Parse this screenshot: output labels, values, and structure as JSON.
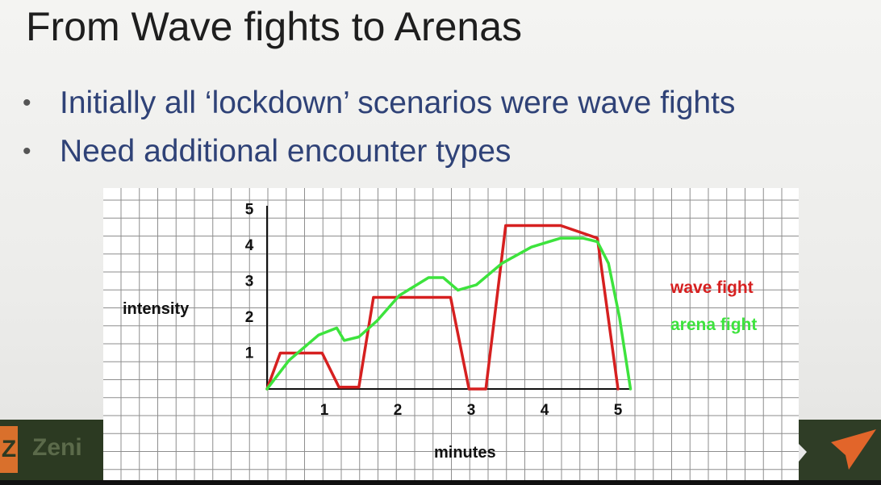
{
  "slide": {
    "title": "From Wave fights to Arenas",
    "bullets": [
      "Initially all ‘lockdown’ scenarios were wave fights",
      "Need additional encounter types"
    ],
    "bullet_symbol": "•",
    "logo_text": "Zeni",
    "logo_mark": "Z"
  },
  "chart_data": {
    "type": "line",
    "xlabel": "minutes",
    "ylabel": "intensity",
    "x_ticks": [
      "1",
      "2",
      "3",
      "4",
      "5"
    ],
    "y_ticks": [
      "1",
      "2",
      "3",
      "4",
      "5"
    ],
    "xlim": [
      0,
      5.2
    ],
    "ylim": [
      0,
      5
    ],
    "grid": true,
    "legend_position": "right",
    "series": [
      {
        "name": "wave fight",
        "color": "#d62020",
        "points": [
          [
            0,
            0
          ],
          [
            0.18,
            1
          ],
          [
            0.75,
            1
          ],
          [
            0.98,
            0.05
          ],
          [
            1.25,
            0.05
          ],
          [
            1.45,
            2.55
          ],
          [
            2.5,
            2.55
          ],
          [
            2.75,
            0
          ],
          [
            2.98,
            0
          ],
          [
            3.25,
            4.55
          ],
          [
            4,
            4.55
          ],
          [
            4.5,
            4.2
          ],
          [
            4.78,
            0
          ]
        ]
      },
      {
        "name": "arena fight",
        "color": "#3de33d",
        "points": [
          [
            0,
            0
          ],
          [
            0.3,
            0.8
          ],
          [
            0.7,
            1.5
          ],
          [
            0.95,
            1.7
          ],
          [
            1.05,
            1.35
          ],
          [
            1.25,
            1.45
          ],
          [
            1.5,
            1.9
          ],
          [
            1.8,
            2.6
          ],
          [
            2.2,
            3.1
          ],
          [
            2.4,
            3.1
          ],
          [
            2.6,
            2.75
          ],
          [
            2.85,
            2.9
          ],
          [
            3.2,
            3.5
          ],
          [
            3.6,
            3.95
          ],
          [
            4,
            4.2
          ],
          [
            4.3,
            4.2
          ],
          [
            4.5,
            4.1
          ],
          [
            4.65,
            3.5
          ],
          [
            4.8,
            2
          ],
          [
            4.95,
            0
          ]
        ]
      }
    ]
  }
}
